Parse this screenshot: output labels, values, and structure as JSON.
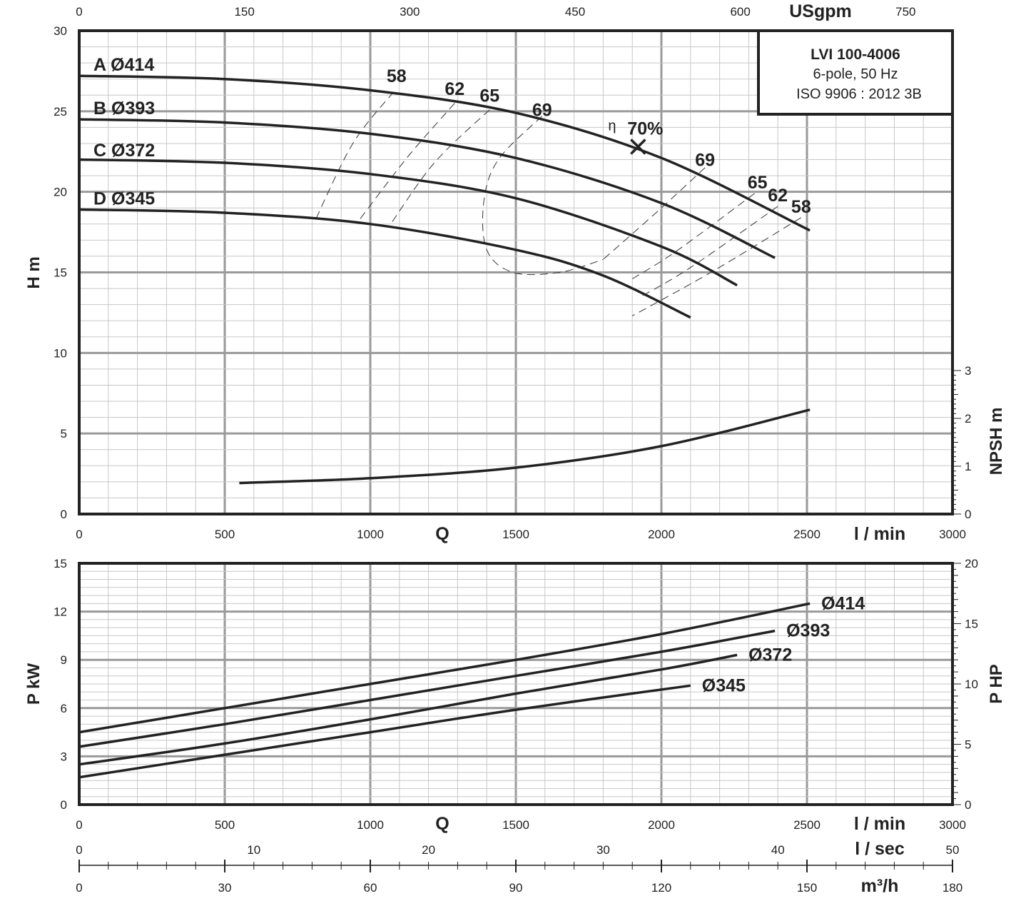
{
  "title_block": {
    "model": "LVI 100-4006",
    "line1": "6-pole, 50 Hz",
    "line2": "ISO 9906 : 2012 3B"
  },
  "axes": {
    "q_label": "Q",
    "q_unit_lmin": "l / min",
    "q_unit_lsec": "l / sec",
    "q_unit_m3h": "m³/h",
    "q_unit_usgpm": "USgpm",
    "h_label": "H m",
    "npsh_label": "NPSH m",
    "p_label": "P kW",
    "php_label": "P HP",
    "eta_symbol": "η",
    "lmin_ticks": [
      "0",
      "500",
      "1000",
      "1500",
      "2000",
      "2500",
      "3000"
    ],
    "usgpm_ticks": [
      "0",
      "150",
      "300",
      "450",
      "600",
      "750"
    ],
    "lsec_ticks": [
      "0",
      "10",
      "20",
      "30",
      "40",
      "50"
    ],
    "m3h_ticks": [
      "0",
      "30",
      "60",
      "90",
      "120",
      "150",
      "180"
    ],
    "h_ticks": [
      "0",
      "5",
      "10",
      "15",
      "20",
      "25",
      "30"
    ],
    "npsh_ticks": [
      "0",
      "1",
      "2",
      "3"
    ],
    "p_ticks": [
      "0",
      "3",
      "6",
      "9",
      "12",
      "15"
    ],
    "php_ticks": [
      "0",
      "5",
      "10",
      "15",
      "20"
    ]
  },
  "chart_data": [
    {
      "type": "line",
      "name": "head",
      "xlabel": "Q l / min",
      "ylabel": "H m",
      "xlim": [
        0,
        3000
      ],
      "ylim": [
        0,
        30
      ],
      "grid": true,
      "series": [
        {
          "name": "A Ø414",
          "label": "A Ø414",
          "x": [
            0,
            500,
            1000,
            1500,
            2000,
            2510
          ],
          "y": [
            27.2,
            27.0,
            26.3,
            24.9,
            22.1,
            17.6
          ]
        },
        {
          "name": "B Ø393",
          "label": "B Ø393",
          "x": [
            0,
            500,
            1000,
            1500,
            2000,
            2390
          ],
          "y": [
            24.5,
            24.3,
            23.6,
            22.1,
            19.3,
            15.9
          ]
        },
        {
          "name": "C Ø372",
          "label": "C Ø372",
          "x": [
            0,
            500,
            1000,
            1500,
            2000,
            2260
          ],
          "y": [
            22.0,
            21.8,
            21.1,
            19.6,
            16.6,
            14.2
          ]
        },
        {
          "name": "D Ø345",
          "label": "D Ø345",
          "x": [
            0,
            500,
            1000,
            1500,
            1800,
            2100
          ],
          "y": [
            18.9,
            18.7,
            18.0,
            16.4,
            14.8,
            12.2
          ]
        }
      ],
      "efficiency": {
        "bep": {
          "x": 1920,
          "y": 22.8,
          "label": "70%"
        },
        "contours": [
          {
            "label": "58",
            "label_left": {
              "x": 1090,
              "y": 27.2
            },
            "label_right": {
              "x": 2480,
              "y": 19.1
            },
            "left": [
              [
                1080,
                26.2
              ],
              [
                940,
                23.0
              ],
              [
                810,
                18.2
              ]
            ],
            "right": [
              [
                2480,
                18.4
              ],
              [
                2170,
                15.0
              ],
              [
                1900,
                12.3
              ]
            ]
          },
          {
            "label": "62",
            "label_left": {
              "x": 1290,
              "y": 26.4
            },
            "label_right": {
              "x": 2400,
              "y": 19.8
            },
            "left": [
              [
                1290,
                25.5
              ],
              [
                1130,
                22.2
              ],
              [
                960,
                18.2
              ]
            ],
            "right": [
              [
                2400,
                19.1
              ],
              [
                2100,
                15.3
              ],
              [
                1930,
                13.5
              ]
            ]
          },
          {
            "label": "65",
            "label_left": {
              "x": 1410,
              "y": 26.0
            },
            "label_right": {
              "x": 2330,
              "y": 20.6
            },
            "left": [
              [
                1410,
                25.1
              ],
              [
                1220,
                21.8
              ],
              [
                1070,
                18.0
              ]
            ],
            "right": [
              [
                2320,
                19.9
              ],
              [
                2050,
                16.3
              ],
              [
                1900,
                14.6
              ]
            ]
          },
          {
            "label": "69",
            "label_left": {
              "x": 1590,
              "y": 25.1
            },
            "label_right": {
              "x": 2150,
              "y": 22.0
            },
            "left": [
              [
                1590,
                24.7
              ],
              [
                1440,
                22.0
              ],
              [
                1390,
                19.4
              ],
              [
                1400,
                16.4
              ],
              [
                1490,
                15.0
              ],
              [
                1650,
                15.0
              ],
              [
                1800,
                15.8
              ]
            ],
            "right": [
              [
                2150,
                21.5
              ],
              [
                2000,
                19.0
              ],
              [
                1800,
                15.8
              ]
            ]
          }
        ]
      },
      "npsh": {
        "ylabel": "NPSH m",
        "ylim": [
          0,
          3
        ],
        "x": [
          550,
          1000,
          1500,
          2000,
          2510
        ],
        "y": [
          0.65,
          0.75,
          0.97,
          1.42,
          2.18
        ]
      }
    },
    {
      "type": "line",
      "name": "power",
      "xlabel": "Q l / min",
      "ylabel": "P kW",
      "xlim": [
        0,
        3000
      ],
      "ylim": [
        0,
        15
      ],
      "grid": true,
      "series": [
        {
          "name": "Ø414",
          "label": "Ø414",
          "x": [
            0,
            500,
            1000,
            1500,
            2000,
            2510
          ],
          "y": [
            4.5,
            6.0,
            7.5,
            9.0,
            10.6,
            12.5
          ]
        },
        {
          "name": "Ø393",
          "label": "Ø393",
          "x": [
            0,
            500,
            1000,
            1500,
            2000,
            2390
          ],
          "y": [
            3.6,
            5.0,
            6.5,
            8.0,
            9.5,
            10.8
          ]
        },
        {
          "name": "Ø372",
          "label": "Ø372",
          "x": [
            0,
            500,
            1000,
            1500,
            2000,
            2260
          ],
          "y": [
            2.5,
            3.8,
            5.3,
            6.9,
            8.4,
            9.3
          ]
        },
        {
          "name": "Ø345",
          "label": "Ø345",
          "x": [
            0,
            500,
            1000,
            1500,
            2100
          ],
          "y": [
            1.7,
            3.1,
            4.5,
            5.9,
            7.4
          ]
        }
      ]
    }
  ]
}
